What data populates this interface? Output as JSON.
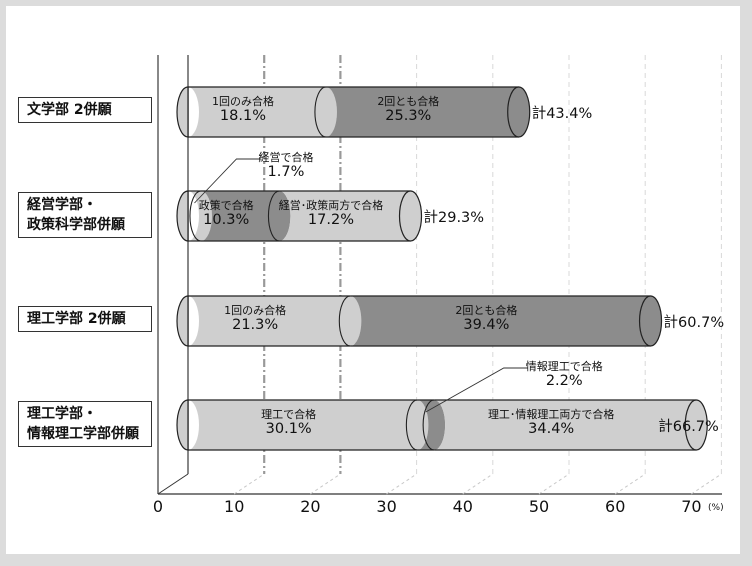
{
  "chart_data": {
    "type": "bar",
    "subtype": "stacked-horizontal-3d-cylinder",
    "title": "",
    "xlabel": "",
    "x_unit": "(%)",
    "xlim": [
      0,
      70
    ],
    "x_ticks": [
      "0",
      "10",
      "20",
      "30",
      "40",
      "50",
      "60",
      "70"
    ],
    "grid": true,
    "categories": [
      "文学部 2併願",
      "経営学部・政策科学部併願",
      "理工学部 2併願",
      "理工学部・情報理工学部併願"
    ],
    "bars": [
      {
        "category_lines": [
          "文学部 2併願"
        ],
        "segments": [
          {
            "name": "1回のみ合格",
            "value": 18.1,
            "label": "18.1%",
            "color": "#cfcfcf"
          },
          {
            "name": "2回とも合格",
            "value": 25.3,
            "label": "25.3%",
            "color": "#8c8c8c"
          }
        ],
        "total_label": "計43.4%",
        "total": 43.4
      },
      {
        "category_lines": [
          "経営学部・",
          "政策科学部併願"
        ],
        "segments": [
          {
            "name": "経営で合格",
            "value": 1.7,
            "label": "1.7%",
            "color": "#cfcfcf",
            "callout": true
          },
          {
            "name": "政策で合格",
            "value": 10.3,
            "label": "10.3%",
            "color": "#8c8c8c"
          },
          {
            "name": "経営･政策両方で合格",
            "value": 17.2,
            "label": "17.2%",
            "color": "#cfcfcf"
          }
        ],
        "total_label": "計29.3%",
        "total": 29.3
      },
      {
        "category_lines": [
          "理工学部 2併願"
        ],
        "segments": [
          {
            "name": "1回のみ合格",
            "value": 21.3,
            "label": "21.3%",
            "color": "#cfcfcf"
          },
          {
            "name": "2回とも合格",
            "value": 39.4,
            "label": "39.4%",
            "color": "#8c8c8c"
          }
        ],
        "total_label": "計60.7%",
        "total": 60.7
      },
      {
        "category_lines": [
          "理工学部・",
          "情報理工学部併願"
        ],
        "segments": [
          {
            "name": "理工で合格",
            "value": 30.1,
            "label": "30.1%",
            "color": "#cfcfcf"
          },
          {
            "name": "情報理工で合格",
            "value": 2.2,
            "label": "2.2%",
            "color": "#8c8c8c",
            "callout": true
          },
          {
            "name": "理工･情報理工両方で合格",
            "value": 34.4,
            "label": "34.4%",
            "color": "#cfcfcf"
          }
        ],
        "total_label": "計66.7%",
        "total": 66.7
      }
    ]
  }
}
